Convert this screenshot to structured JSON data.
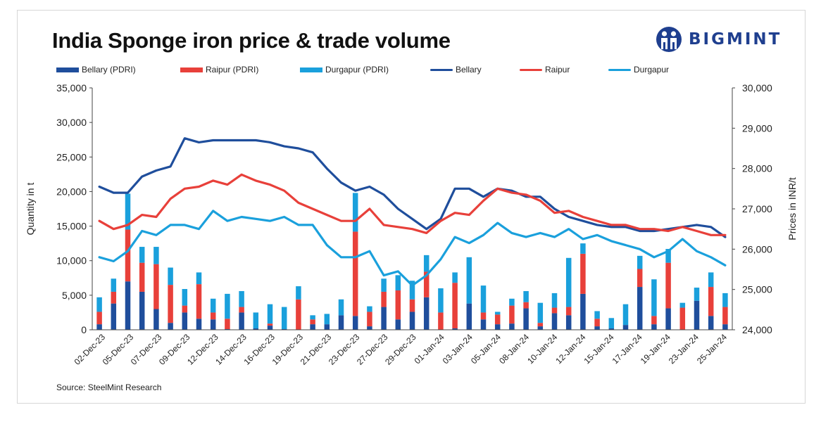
{
  "title": "India Sponge iron price & trade volume",
  "brand": {
    "name": "BIGMINT",
    "color": "#1f3f8f"
  },
  "source": "Source: SteelMint Research",
  "chart_data": {
    "type": "bar+line",
    "title": "India Sponge iron price & trade volume",
    "ylabel_left": "Quantity in t",
    "ylabel_right": "Prices in INR/t",
    "ylim_left": [
      0,
      35000
    ],
    "ylim_right": [
      24000,
      30000
    ],
    "yticks_left": [
      "0",
      "5,000",
      "10,000",
      "15,000",
      "20,000",
      "25,000",
      "30,000",
      "35,000"
    ],
    "yticks_right": [
      "24,000",
      "25,000",
      "26,000",
      "27,000",
      "28,000",
      "29,000",
      "30,000"
    ],
    "legend_position": "top",
    "grid": false,
    "x_tick_labels": [
      "02-Dec-23",
      "05-Dec-23",
      "07-Dec-23",
      "09-Dec-23",
      "12-Dec-23",
      "14-Dec-23",
      "16-Dec-23",
      "19-Dec-23",
      "21-Dec-23",
      "23-Dec-23",
      "27-Dec-23",
      "29-Dec-23",
      "01-Jan-24",
      "03-Jan-24",
      "05-Jan-24",
      "08-Jan-24",
      "10-Jan-24",
      "12-Jan-24",
      "15-Jan-24",
      "17-Jan-24",
      "19-Jan-24",
      "23-Jan-24",
      "25-Jan-24"
    ],
    "bar_series": [
      {
        "name": "Bellary (PDRI)",
        "color": "#1f4e9c",
        "values": [
          800,
          3800,
          7000,
          5500,
          3000,
          1000,
          2500,
          1600,
          1500,
          100,
          2500,
          200,
          600,
          100,
          0,
          800,
          800,
          2100,
          2000,
          500,
          3300,
          1500,
          2600,
          4700,
          0,
          200,
          3800,
          1500,
          800,
          900,
          3100,
          500,
          2400,
          2100,
          5200,
          500,
          200,
          700,
          6200,
          800,
          3100,
          0,
          4200,
          2000,
          800
        ]
      },
      {
        "name": "Raipur (PDRI)",
        "color": "#e8403a",
        "values": [
          1800,
          1700,
          7500,
          4200,
          6500,
          5500,
          1000,
          5000,
          1000,
          1500,
          800,
          0,
          300,
          0,
          4400,
          700,
          0,
          0,
          12200,
          2100,
          2200,
          4200,
          1800,
          3700,
          2500,
          6600,
          0,
          1000,
          1400,
          2600,
          900,
          500,
          800,
          1200,
          5800,
          1100,
          0,
          0,
          2600,
          1200,
          6600,
          3200,
          0,
          4200,
          2500
        ]
      },
      {
        "name": "Durgapur (PDRI)",
        "color": "#1aa0dc",
        "values": [
          2100,
          1900,
          5200,
          2300,
          2500,
          2500,
          2400,
          1700,
          2000,
          3600,
          2300,
          2300,
          2800,
          3200,
          1900,
          600,
          1500,
          2300,
          5600,
          800,
          1900,
          2200,
          2700,
          2400,
          3500,
          1500,
          6700,
          3900,
          400,
          1000,
          1600,
          2900,
          2100,
          7100,
          1500,
          1100,
          1500,
          3000,
          1900,
          5300,
          2000,
          700,
          1900,
          2100,
          2000
        ]
      }
    ],
    "line_series": [
      {
        "name": "Bellary",
        "color": "#1f4e9c",
        "values": [
          27550,
          27400,
          27400,
          27800,
          27950,
          28050,
          28750,
          28650,
          28700,
          28700,
          28700,
          28700,
          28650,
          28550,
          28500,
          28400,
          28000,
          27650,
          27450,
          27550,
          27350,
          27000,
          26750,
          26500,
          26750,
          27500,
          27500,
          27300,
          27500,
          27450,
          27300,
          27300,
          27000,
          26800,
          26700,
          26600,
          26550,
          26550,
          26450,
          26450,
          26500,
          26550,
          26600,
          26550,
          26300
        ]
      },
      {
        "name": "Raipur",
        "color": "#e8403a",
        "values": [
          26700,
          26500,
          26600,
          26850,
          26800,
          27250,
          27500,
          27550,
          27700,
          27600,
          27850,
          27700,
          27600,
          27450,
          27150,
          27000,
          26850,
          26700,
          26700,
          27000,
          26600,
          26550,
          26500,
          26400,
          26700,
          26900,
          26850,
          27200,
          27500,
          27400,
          27350,
          27200,
          26900,
          26950,
          26800,
          26700,
          26600,
          26600,
          26500,
          26500,
          26450,
          26550,
          26450,
          26350,
          26350
        ]
      },
      {
        "name": "Durgapur",
        "color": "#1aa0dc",
        "values": [
          25800,
          25700,
          25950,
          26450,
          26350,
          26600,
          26600,
          26500,
          26950,
          26700,
          26800,
          26750,
          26700,
          26800,
          26600,
          26600,
          26100,
          25800,
          25800,
          25950,
          25350,
          25450,
          25100,
          25350,
          25750,
          26300,
          26150,
          26350,
          26650,
          26400,
          26300,
          26400,
          26300,
          26500,
          26250,
          26350,
          26200,
          26100,
          26000,
          25800,
          25950,
          26250,
          25950,
          25800,
          25600
        ]
      }
    ]
  }
}
